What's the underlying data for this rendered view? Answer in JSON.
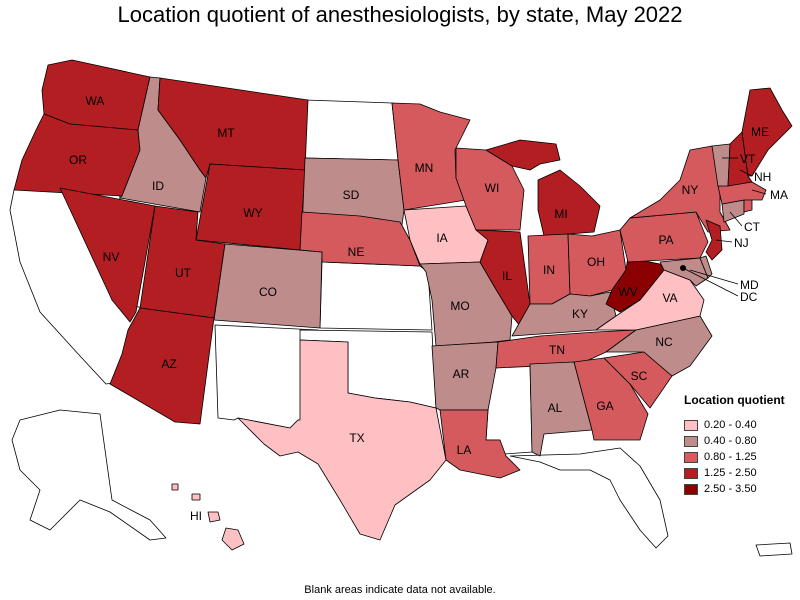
{
  "title": "Location quotient of anesthesiologists, by state, May 2022",
  "footnote": "Blank areas indicate data not available.",
  "legend": {
    "title": "Location quotient",
    "items": [
      {
        "label": "0.20 - 0.40",
        "color": "#ffc0c4"
      },
      {
        "label": "0.40 - 0.80",
        "color": "#bf8c8c"
      },
      {
        "label": "0.80 - 1.25",
        "color": "#d45a5e"
      },
      {
        "label": "1.25 - 2.50",
        "color": "#b31e22"
      },
      {
        "label": "2.50 - 3.50",
        "color": "#8b0000"
      }
    ]
  },
  "no_data_color": "#ffffff",
  "state_labels": {
    "WA": "WA",
    "OR": "OR",
    "ID": "ID",
    "MT": "MT",
    "WY": "WY",
    "NV": "NV",
    "UT": "UT",
    "CO": "CO",
    "AZ": "AZ",
    "SD": "SD",
    "NE": "NE",
    "MN": "MN",
    "IA": "IA",
    "MO": "MO",
    "AR": "AR",
    "LA": "LA",
    "TX": "TX",
    "WI": "WI",
    "IL": "IL",
    "MI": "MI",
    "IN": "IN",
    "OH": "OH",
    "KY": "KY",
    "TN": "TN",
    "AL": "AL",
    "GA": "GA",
    "SC": "SC",
    "NC": "NC",
    "VA": "VA",
    "WV": "WV",
    "PA": "PA",
    "NY": "NY",
    "ME": "ME",
    "VT": "VT",
    "NH": "NH",
    "MA": "MA",
    "CT": "CT",
    "NJ": "NJ",
    "MD": "MD",
    "DC": "DC",
    "HI": "HI"
  },
  "state_class": {
    "WA": "1.25 - 2.50",
    "OR": "1.25 - 2.50",
    "ID": "0.40 - 0.80",
    "MT": "1.25 - 2.50",
    "WY": "1.25 - 2.50",
    "NV": "1.25 - 2.50",
    "UT": "1.25 - 2.50",
    "CO": "0.40 - 0.80",
    "AZ": "1.25 - 2.50",
    "SD": "0.40 - 0.80",
    "NE": "0.80 - 1.25",
    "MN": "0.80 - 1.25",
    "IA": "0.20 - 0.40",
    "MO": "0.40 - 0.80",
    "AR": "0.40 - 0.80",
    "LA": "0.80 - 1.25",
    "TX": "0.20 - 0.40",
    "WI": "0.80 - 1.25",
    "IL": "1.25 - 2.50",
    "MI": "1.25 - 2.50",
    "IN": "0.80 - 1.25",
    "OH": "0.80 - 1.25",
    "KY": "0.40 - 0.80",
    "TN": "0.80 - 1.25",
    "AL": "0.40 - 0.80",
    "GA": "0.80 - 1.25",
    "SC": "0.80 - 1.25",
    "NC": "0.40 - 0.80",
    "VA": "0.20 - 0.40",
    "WV": "2.50 - 3.50",
    "PA": "0.80 - 1.25",
    "NY": "0.80 - 1.25",
    "ME": "1.25 - 2.50",
    "VT": "0.40 - 0.80",
    "NH": "1.25 - 2.50",
    "MA": "0.80 - 1.25",
    "CT": "0.40 - 0.80",
    "NJ": "1.25 - 2.50",
    "MD": "0.40 - 0.80",
    "DE": "0.40 - 0.80",
    "RI": "0.80 - 1.25",
    "HI": "0.20 - 0.40"
  }
}
